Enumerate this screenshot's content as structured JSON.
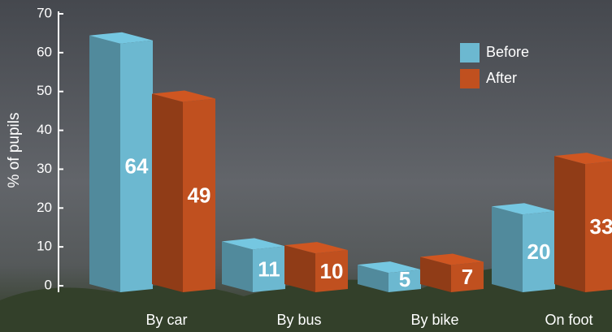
{
  "chart_data": {
    "type": "bar3d",
    "y_label": "% of pupils",
    "categories": [
      "By car",
      "By bus",
      "By bike",
      "On foot"
    ],
    "series": [
      {
        "name": "Before",
        "color": "#6cb8d0",
        "values": [
          64,
          11,
          5,
          20
        ]
      },
      {
        "name": "After",
        "color": "#c0501f",
        "values": [
          49,
          10,
          7,
          33
        ]
      }
    ],
    "ylim": [
      0,
      70
    ],
    "yticks": [
      0,
      10,
      20,
      30,
      40,
      50,
      60,
      70
    ]
  }
}
